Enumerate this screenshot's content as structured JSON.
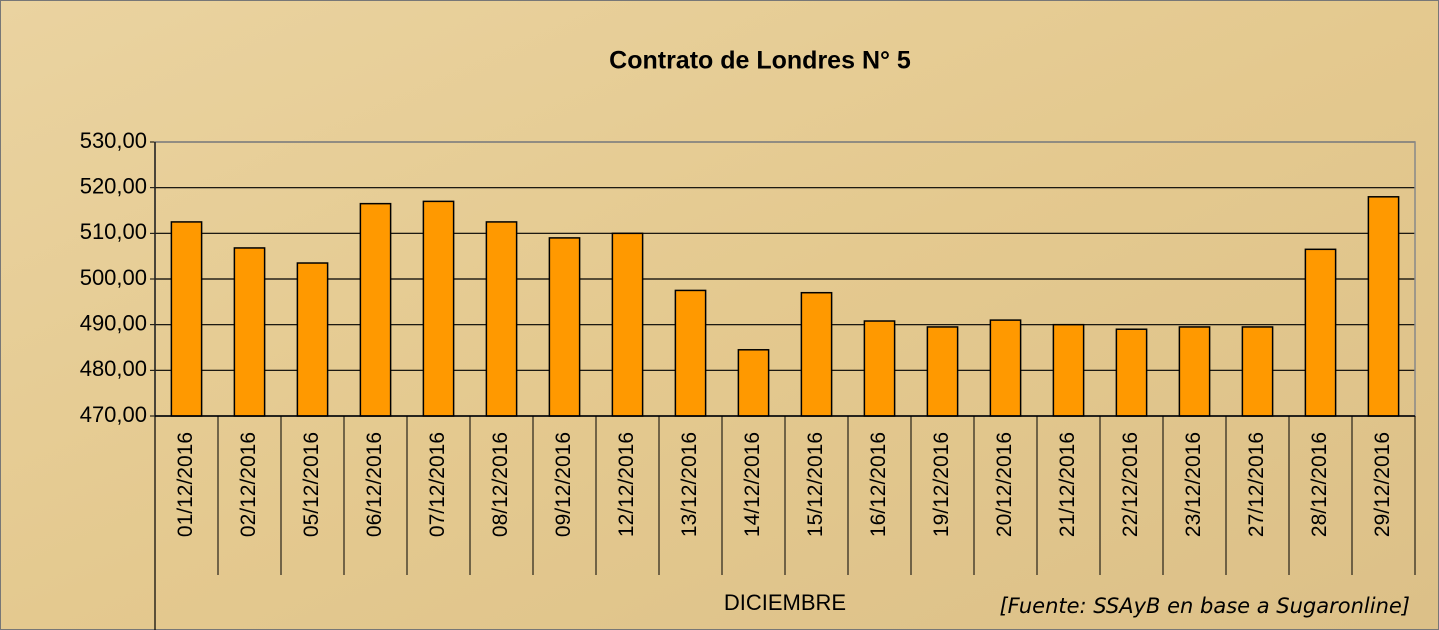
{
  "chart_data": {
    "type": "bar",
    "title": "Contrato de Londres N° 5",
    "x_label": "DICIEMBRE",
    "source": "[Fuente: SSAyB en base a Sugaronline]",
    "categories": [
      "01/12/2016",
      "02/12/2016",
      "05/12/2016",
      "06/12/2016",
      "07/12/2016",
      "08/12/2016",
      "09/12/2016",
      "12/12/2016",
      "13/12/2016",
      "14/12/2016",
      "15/12/2016",
      "16/12/2016",
      "19/12/2016",
      "20/12/2016",
      "21/12/2016",
      "22/12/2016",
      "23/12/2016",
      "27/12/2016",
      "28/12/2016",
      "29/12/2016"
    ],
    "values": [
      512.5,
      506.8,
      503.5,
      516.5,
      517,
      512.5,
      509,
      510,
      497.5,
      484.5,
      497,
      490.8,
      489.5,
      491,
      490,
      489,
      489.5,
      489.5,
      506.5,
      518
    ],
    "color": "#ff9900",
    "ylim": [
      470,
      530
    ],
    "yticks": [
      {
        "value": 470,
        "label": "470,00"
      },
      {
        "value": 480,
        "label": "480,00"
      },
      {
        "value": 490,
        "label": "490,00"
      },
      {
        "value": 500,
        "label": "500,00"
      },
      {
        "value": 510,
        "label": "510,00"
      },
      {
        "value": 520,
        "label": "520,00"
      },
      {
        "value": 530,
        "label": "530,00"
      }
    ],
    "grid": true
  }
}
